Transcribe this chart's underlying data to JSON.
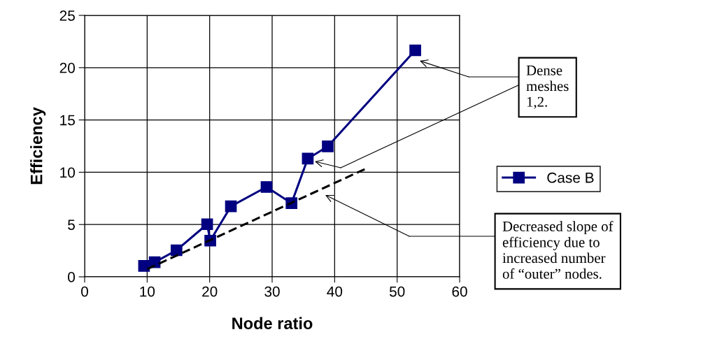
{
  "chart_data": {
    "type": "line",
    "xlabel": "Node ratio",
    "ylabel": "Efficiency",
    "x": [
      9.5,
      11.2,
      14.7,
      19.6,
      20.1,
      23.4,
      29.1,
      33.1,
      35.7,
      38.9,
      52.9
    ],
    "series": [
      {
        "name": "Case B",
        "color": "#000080",
        "values": [
          1.04,
          1.39,
          2.54,
          5.03,
          3.46,
          6.74,
          8.59,
          7.04,
          11.3,
          12.47,
          21.66
        ],
        "marker": "square",
        "line_style": "solid"
      },
      {
        "type": "line",
        "color": "#000000",
        "x": [
          10.0,
          45.2
        ],
        "values": [
          0.74,
          10.4
        ],
        "marker": "none",
        "line_style": "dashed"
      }
    ],
    "xlim": [
      0,
      60
    ],
    "ylim": [
      0,
      25
    ],
    "xticks": [
      0,
      10,
      20,
      30,
      40,
      50,
      60
    ],
    "yticks": [
      0,
      5,
      10,
      15,
      20,
      25
    ],
    "grid": true,
    "legend": "right",
    "annotations": [
      "Dense\nmeshes\n1,2.",
      "Decreased slope of\nefficiency due to\nincreased number\nof “outer” nodes."
    ]
  }
}
